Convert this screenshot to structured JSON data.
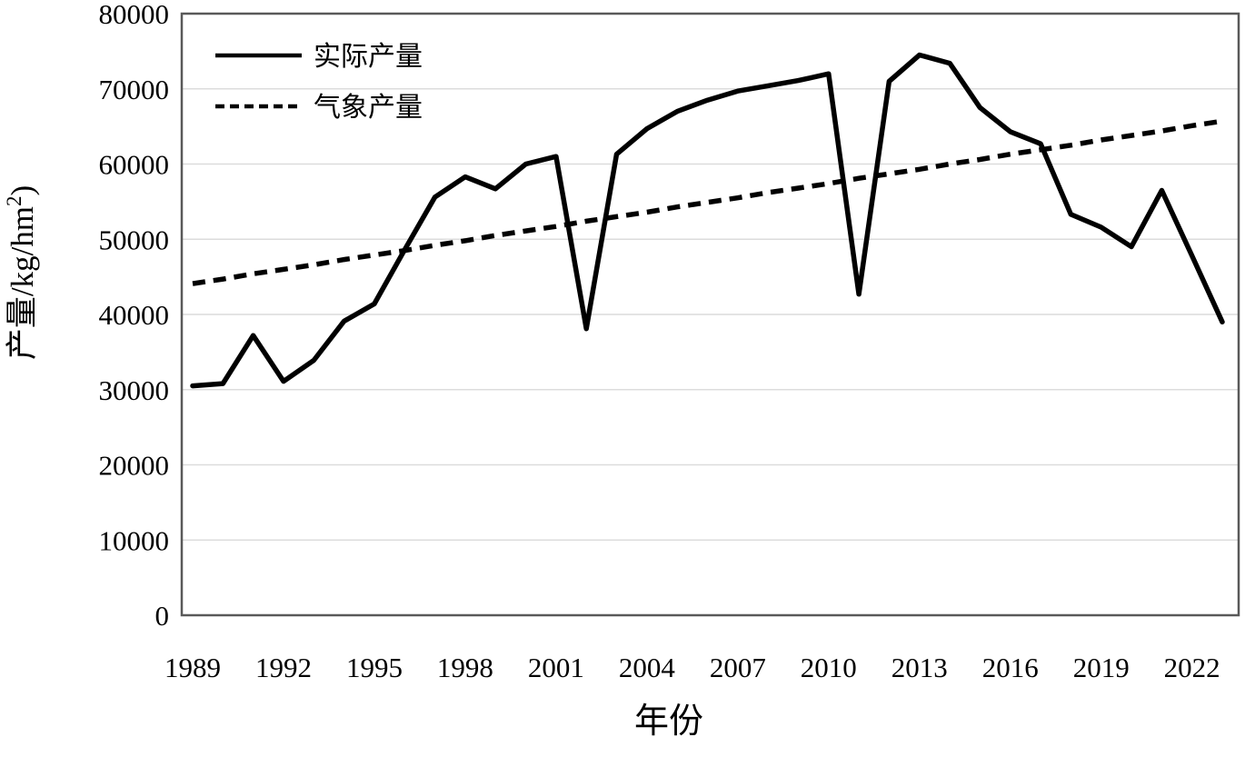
{
  "chart_data": {
    "type": "line",
    "title": "",
    "xlabel": "年份",
    "ylabel": "产量/kg/hm²)",
    "ylabel_parts": {
      "main": "产量/kg/hm",
      "sup": "2",
      "suffix": ")"
    },
    "ylim": [
      0,
      80000
    ],
    "ytick_interval": 10000,
    "y_ticks": [
      0,
      10000,
      20000,
      30000,
      40000,
      50000,
      60000,
      70000,
      80000
    ],
    "x_tick_years": [
      1989,
      1992,
      1995,
      1998,
      2001,
      2004,
      2007,
      2010,
      2013,
      2016,
      2019,
      2022
    ],
    "x_years": [
      1989,
      1990,
      1991,
      1992,
      1993,
      1994,
      1995,
      1996,
      1997,
      1998,
      1999,
      2000,
      2001,
      2002,
      2003,
      2004,
      2005,
      2006,
      2007,
      2008,
      2009,
      2010,
      2011,
      2012,
      2013,
      2014,
      2015,
      2016,
      2017,
      2018,
      2019,
      2020,
      2021,
      2022,
      2023
    ],
    "grid": "horizontal-only",
    "legend_position": "top-left-inside",
    "series": [
      {
        "name": "实际产量",
        "style": "solid",
        "values": [
          30500,
          30800,
          37200,
          31100,
          33900,
          39100,
          41400,
          48600,
          55600,
          58300,
          56700,
          60000,
          61000,
          38100,
          61300,
          64700,
          67000,
          68500,
          69700,
          70400,
          71100,
          72000,
          42700,
          71000,
          74500,
          73400,
          67500,
          64300,
          62700,
          53300,
          51600,
          49000,
          56500,
          47800,
          39000
        ]
      },
      {
        "name": "气象产量",
        "style": "dashed",
        "values": [
          44100,
          44700,
          45400,
          46000,
          46600,
          47300,
          47900,
          48500,
          49200,
          49800,
          50500,
          51100,
          51700,
          52400,
          53000,
          53600,
          54300,
          54900,
          55500,
          56200,
          56800,
          57400,
          58100,
          58700,
          59300,
          60000,
          60600,
          61300,
          61900,
          62500,
          63200,
          63800,
          64400,
          65100,
          65700
        ]
      }
    ],
    "colors": {
      "series_line": "#000000",
      "frame": "#595959",
      "grid": "#dcdcdc",
      "background": "#ffffff",
      "text": "#000000"
    }
  }
}
